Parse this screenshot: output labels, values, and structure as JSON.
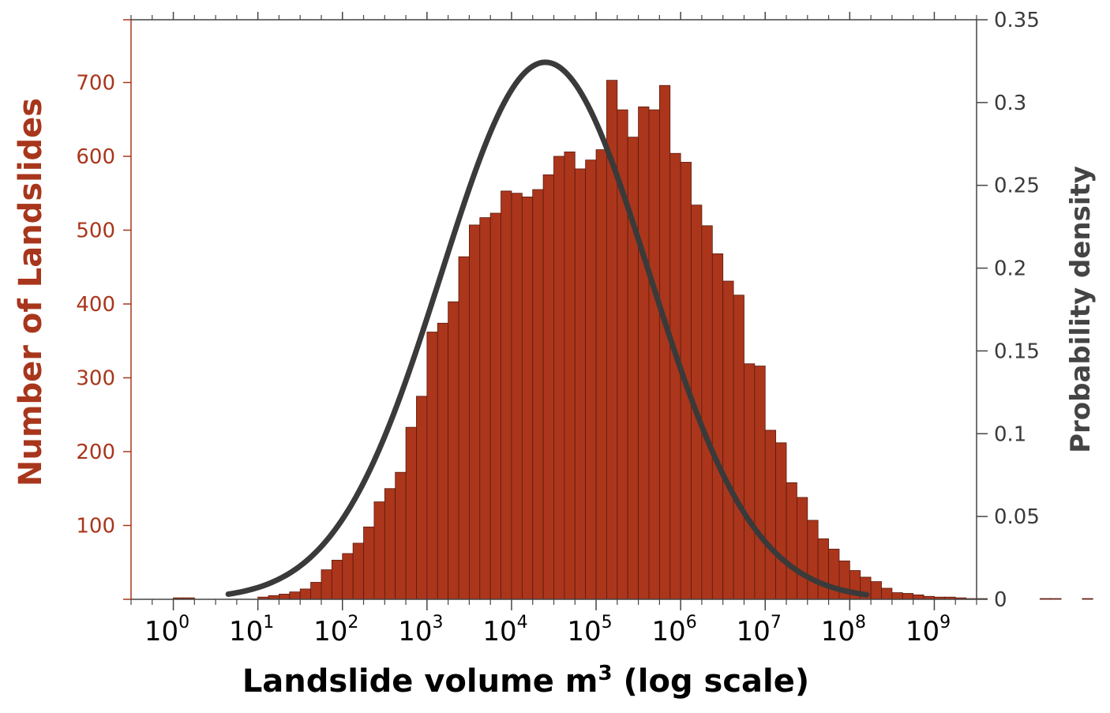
{
  "chart_data": {
    "type": "bar",
    "xlabel": "Landslide volume m",
    "xlabel_superscript": "3",
    "xlabel_suffix": " (log scale)",
    "ylabel": "Number of Landslides",
    "ylabel_right": "Probability density",
    "x_scale": "log10",
    "xlim_log10": [
      -0.5,
      9.5
    ],
    "x_ticks": [
      {
        "base": "10",
        "exp": "0",
        "log10": 0
      },
      {
        "base": "10",
        "exp": "1",
        "log10": 1
      },
      {
        "base": "10",
        "exp": "2",
        "log10": 2
      },
      {
        "base": "10",
        "exp": "3",
        "log10": 3
      },
      {
        "base": "10",
        "exp": "4",
        "log10": 4
      },
      {
        "base": "10",
        "exp": "5",
        "log10": 5
      },
      {
        "base": "10",
        "exp": "6",
        "log10": 6
      },
      {
        "base": "10",
        "exp": "7",
        "log10": 7
      },
      {
        "base": "10",
        "exp": "8",
        "log10": 8
      },
      {
        "base": "10",
        "exp": "9",
        "log10": 9
      }
    ],
    "ylim": [
      0,
      785
    ],
    "y_ticks": [
      "100",
      "200",
      "300",
      "400",
      "500",
      "600",
      "700"
    ],
    "ylim_right": [
      0,
      0.35
    ],
    "y_ticks_right": [
      "0",
      "0.05",
      "0.1",
      "0.15",
      "0.2",
      "0.25",
      "0.3",
      "0.35"
    ],
    "grid": false,
    "histogram": {
      "bin_start_log10": 0,
      "bin_width_log10": 0.125,
      "values": [
        2,
        2,
        0,
        0,
        0,
        0,
        0,
        0,
        3,
        5,
        7,
        10,
        14,
        23,
        40,
        53,
        62,
        76,
        98,
        132,
        150,
        172,
        233,
        275,
        362,
        374,
        403,
        464,
        507,
        517,
        523,
        553,
        550,
        545,
        555,
        575,
        600,
        606,
        583,
        595,
        609,
        703,
        663,
        626,
        667,
        663,
        696,
        604,
        592,
        534,
        506,
        468,
        431,
        412,
        319,
        316,
        229,
        212,
        158,
        138,
        107,
        82,
        68,
        52,
        39,
        30,
        24,
        15,
        9,
        8,
        6,
        4,
        3,
        3,
        2,
        1,
        1,
        0,
        0,
        0,
        0,
        0,
        1,
        1,
        0,
        0,
        1,
        0,
        0,
        0
      ],
      "color": "#ab361c",
      "edge_color": "#5a1a0c"
    },
    "pdf_curve": {
      "type": "normal",
      "mean_log10": 4.4,
      "std_log10": 1.23,
      "x_range_log10": [
        0.65,
        8.2
      ],
      "color": "#3a3a3a"
    }
  }
}
